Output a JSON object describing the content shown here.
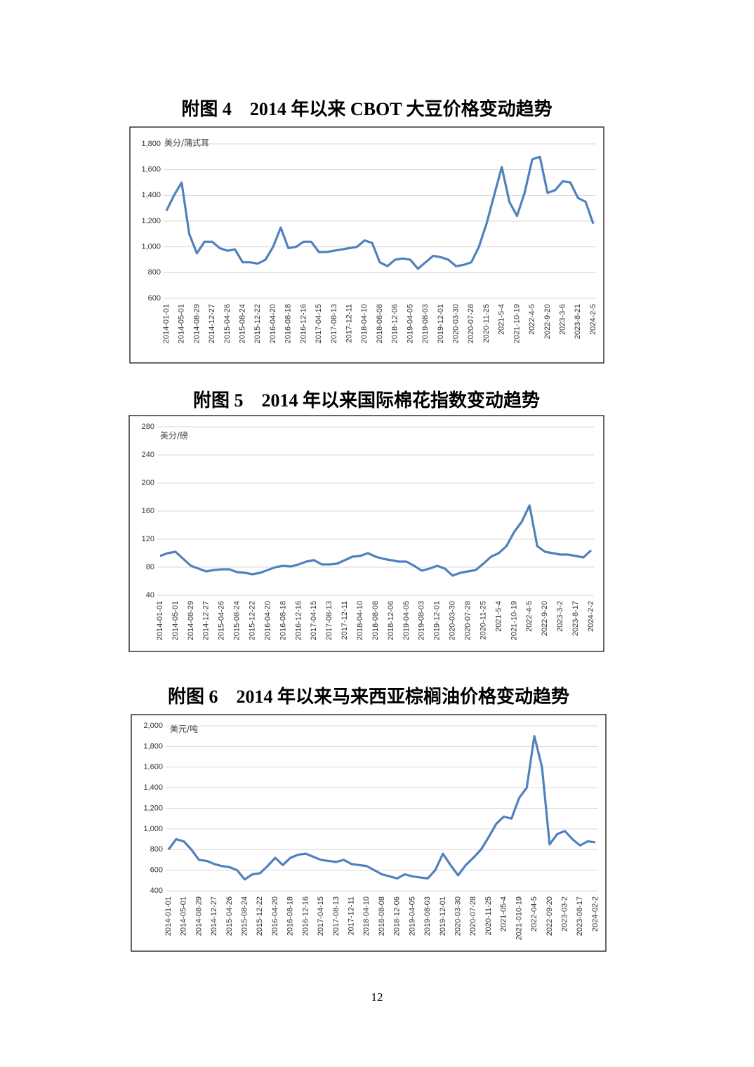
{
  "chart_data": [
    {
      "type": "line",
      "title": "附图 4　2014 年以来 CBOT 大豆价格变动趋势",
      "unit": "美分/蒲式耳",
      "categories": [
        "2014-01-01",
        null,
        "2014-05-01",
        null,
        "2014-08-29",
        null,
        "2014-12-27",
        null,
        "2015-04-26",
        null,
        "2015-08-24",
        null,
        "2015-12-22",
        null,
        "2016-04-20",
        null,
        "2016-08-18",
        null,
        "2016-12-16",
        null,
        "2017-04-15",
        null,
        "2017-08-13",
        null,
        "2017-12-11",
        null,
        "2018-04-10",
        null,
        "2018-08-08",
        null,
        "2018-12-06",
        null,
        "2019-04-05",
        null,
        "2019-08-03",
        null,
        "2019-12-01",
        null,
        "2020-03-30",
        null,
        "2020-07-28",
        null,
        "2020-11-25",
        null,
        "2021-5-4",
        null,
        "2021-10-19",
        null,
        "2022-4-5",
        null,
        "2022-9-20",
        null,
        "2023-3-6",
        null,
        "2023-8-21",
        null,
        "2024-2-5"
      ],
      "values": [
        1280,
        1400,
        1500,
        1100,
        950,
        1040,
        1040,
        990,
        970,
        980,
        880,
        880,
        870,
        900,
        1000,
        1150,
        990,
        1000,
        1040,
        1040,
        960,
        960,
        970,
        980,
        990,
        1000,
        1050,
        1030,
        880,
        850,
        900,
        910,
        900,
        830,
        880,
        930,
        920,
        900,
        850,
        860,
        880,
        1000,
        1180,
        1400,
        1620,
        1350,
        1240,
        1420,
        1680,
        1700,
        1420,
        1440,
        1510,
        1500,
        1380,
        1350,
        1180
      ],
      "color": "#4f81bd",
      "grid": true,
      "ylim": [
        600,
        1800
      ],
      "yticks": [
        600,
        800,
        {
          "value": 1000,
          "label": "1,000"
        },
        {
          "value": 1200,
          "label": "1,200"
        },
        {
          "value": 1400,
          "label": "1,400"
        },
        {
          "value": 1600,
          "label": "1,600"
        },
        {
          "value": 1800,
          "label": "1,800"
        }
      ]
    },
    {
      "type": "line",
      "title": "附图 5　2014 年以来国际棉花指数变动趋势",
      "unit": "美分/磅",
      "categories": [
        "2014-01-01",
        null,
        "2014-05-01",
        null,
        "2014-08-29",
        null,
        "2014-12-27",
        null,
        "2015-04-26",
        null,
        "2015-08-24",
        null,
        "2015-12-22",
        null,
        "2016-04-20",
        null,
        "2016-08-18",
        null,
        "2016-12-16",
        null,
        "2017-04-15",
        null,
        "2017-08-13",
        null,
        "2017-12-11",
        null,
        "2018-04-10",
        null,
        "2018-08-08",
        null,
        "2018-12-06",
        null,
        "2019-04-05",
        null,
        "2019-08-03",
        null,
        "2019-12-01",
        null,
        "2020-03-30",
        null,
        "2020-07-28",
        null,
        "2020-11-25",
        null,
        "2021-5-4",
        null,
        "2021-10-19",
        null,
        "2022-4-5",
        null,
        "2022-9-20",
        null,
        "2023-3-2",
        null,
        "2023-8-17",
        null,
        "2024-2-2"
      ],
      "values": [
        96,
        100,
        102,
        92,
        82,
        78,
        74,
        76,
        77,
        77,
        73,
        72,
        70,
        72,
        76,
        80,
        82,
        81,
        84,
        88,
        90,
        84,
        84,
        85,
        90,
        95,
        96,
        100,
        95,
        92,
        90,
        88,
        88,
        82,
        75,
        78,
        82,
        78,
        68,
        72,
        74,
        76,
        85,
        95,
        100,
        110,
        130,
        145,
        168,
        110,
        102,
        100,
        98,
        98,
        96,
        94,
        104
      ],
      "color": "#4f81bd",
      "grid": true,
      "ylim": [
        40,
        280
      ],
      "yticks": [
        40,
        80,
        120,
        160,
        200,
        240,
        280
      ]
    },
    {
      "type": "line",
      "title": "附图 6　2014 年以来马来西亚棕榈油价格变动趋势",
      "unit": "美元/吨",
      "categories": [
        "2014-01-01",
        null,
        "2014-05-01",
        null,
        "2014-08-29",
        null,
        "2014-12-27",
        null,
        "2015-04-26",
        null,
        "2015-08-24",
        null,
        "2015-12-22",
        null,
        "2016-04-20",
        null,
        "2016-08-18",
        null,
        "2016-12-16",
        null,
        "2017-04-15",
        null,
        "2017-08-13",
        null,
        "2017-12-11",
        null,
        "2018-04-10",
        null,
        "2018-08-08",
        null,
        "2018-12-06",
        null,
        "2019-04-05",
        null,
        "2019-08-03",
        null,
        "2019-12-01",
        null,
        "2020-03-30",
        null,
        "2020-07-28",
        null,
        "2020-11-25",
        null,
        "2021-05-4",
        null,
        "2021-010-19",
        null,
        "2022-04-5",
        null,
        "2022-09-20",
        null,
        "2023-03-2",
        null,
        "2023-08-17",
        null,
        "2024-02-2"
      ],
      "values": [
        800,
        900,
        880,
        800,
        700,
        690,
        660,
        640,
        630,
        600,
        510,
        560,
        570,
        640,
        720,
        650,
        720,
        750,
        760,
        730,
        700,
        690,
        680,
        700,
        660,
        650,
        640,
        600,
        560,
        540,
        520,
        560,
        540,
        530,
        520,
        600,
        760,
        650,
        550,
        650,
        720,
        800,
        920,
        1050,
        1120,
        1100,
        1300,
        1400,
        1900,
        1600,
        850,
        950,
        980,
        900,
        840,
        880,
        870
      ],
      "color": "#4f81bd",
      "grid": true,
      "ylim": [
        400,
        2000
      ],
      "yticks": [
        400,
        600,
        800,
        {
          "value": 1000,
          "label": "1,000"
        },
        {
          "value": 1200,
          "label": "1,200"
        },
        {
          "value": 1400,
          "label": "1,400"
        },
        {
          "value": 1600,
          "label": "1,600"
        },
        {
          "value": 1800,
          "label": "1,800"
        },
        {
          "value": 2000,
          "label": "2,000"
        }
      ]
    }
  ],
  "page_number": "12"
}
